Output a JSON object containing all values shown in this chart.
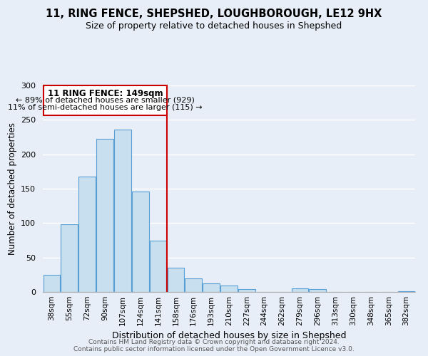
{
  "title": "11, RING FENCE, SHEPSHED, LOUGHBOROUGH, LE12 9HX",
  "subtitle": "Size of property relative to detached houses in Shepshed",
  "xlabel": "Distribution of detached houses by size in Shepshed",
  "ylabel": "Number of detached properties",
  "bar_labels": [
    "38sqm",
    "55sqm",
    "72sqm",
    "90sqm",
    "107sqm",
    "124sqm",
    "141sqm",
    "158sqm",
    "176sqm",
    "193sqm",
    "210sqm",
    "227sqm",
    "244sqm",
    "262sqm",
    "279sqm",
    "296sqm",
    "313sqm",
    "330sqm",
    "348sqm",
    "365sqm",
    "382sqm"
  ],
  "bar_values": [
    25,
    98,
    168,
    222,
    236,
    146,
    75,
    35,
    20,
    12,
    9,
    4,
    0,
    0,
    5,
    4,
    0,
    0,
    0,
    0,
    1
  ],
  "bar_color": "#c8dff0",
  "bar_edge_color": "#5a9fd4",
  "vline_x_index": 7,
  "vline_color": "#cc0000",
  "annotation_title": "11 RING FENCE: 149sqm",
  "annotation_line1": "← 89% of detached houses are smaller (929)",
  "annotation_line2": "11% of semi-detached houses are larger (115) →",
  "annotation_box_color": "#ffffff",
  "annotation_box_edge": "#cc0000",
  "ylim": [
    0,
    300
  ],
  "yticks": [
    0,
    50,
    100,
    150,
    200,
    250,
    300
  ],
  "footer1": "Contains HM Land Registry data © Crown copyright and database right 2024.",
  "footer2": "Contains public sector information licensed under the Open Government Licence v3.0.",
  "background_color": "#e8eef8"
}
